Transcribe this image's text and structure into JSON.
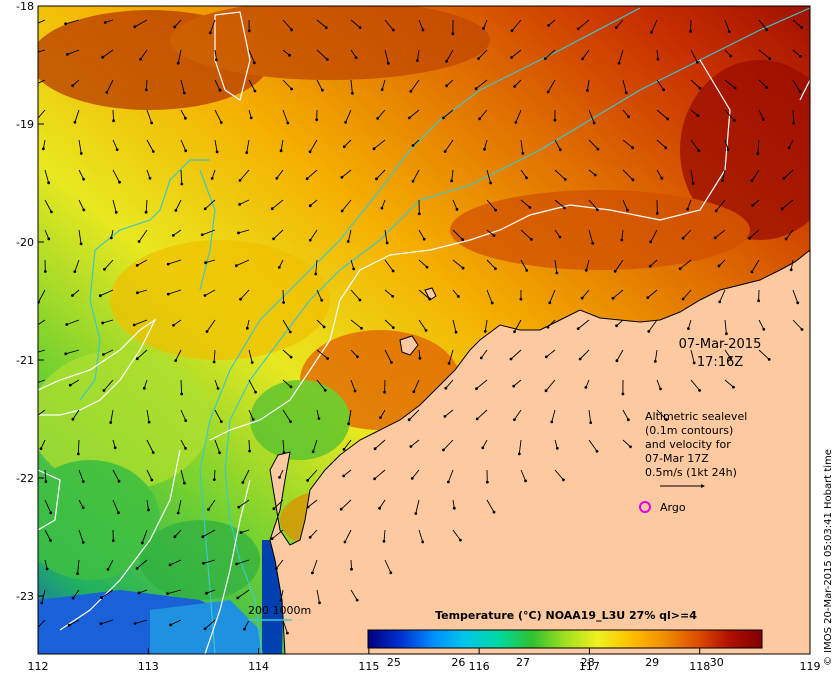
{
  "map": {
    "lon_ticks": [
      "112",
      "113",
      "114",
      "115",
      "116",
      "117",
      "118",
      "119"
    ],
    "lat_ticks": [
      "-18",
      "-19",
      "-20",
      "-21",
      "-22",
      "-23"
    ],
    "date": "07-Mar-2015",
    "time": "17:16Z",
    "legend_lines": [
      "Altimetric sealevel",
      "(0.1m contours)",
      "and velocity for",
      "07-Mar 17Z",
      "0.5m/s (1kt 24h)"
    ],
    "argo_label": "Argo",
    "bathy_label": "200  1000m",
    "credit": "© IMOS 20-Mar-2015 05:03:41 Hobart time",
    "colors": {
      "land": "#fdc9a0",
      "bathy": "#3cc8c8",
      "argo": "#e000e0",
      "contour": "#ffffff"
    }
  },
  "colorbar": {
    "title": "Temperature (°C) NOAA19_L3U 27% ql>=4",
    "ticks": [
      "25",
      "26",
      "27",
      "28",
      "29",
      "30"
    ],
    "min": 24.6,
    "max": 30.7,
    "stops": [
      "#000080",
      "#0030d0",
      "#0090ff",
      "#00c8e8",
      "#00d8a0",
      "#30c030",
      "#a0e020",
      "#f0f020",
      "#ffc000",
      "#f09000",
      "#e05000",
      "#b01000",
      "#800000"
    ]
  }
}
